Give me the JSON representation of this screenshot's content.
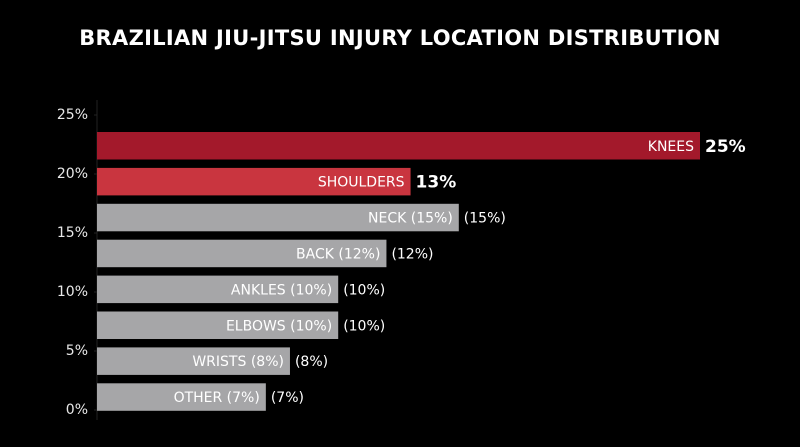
{
  "chart_data": {
    "type": "bar",
    "orientation": "horizontal",
    "title": "BRAZILIAN JIU-JITSU INJURY LOCATION DISTRIBUTION",
    "categories": [
      "KNEES",
      "SHOULDERS",
      "NECK (15%)",
      "BACK (12%)",
      "ANKLES (10%)",
      "ELBOWS (10%)",
      "WRISTS (8%)",
      "OTHER (7%)"
    ],
    "values": [
      25,
      13,
      15,
      12,
      10,
      10,
      8,
      7
    ],
    "value_labels": [
      "25%",
      "13%",
      "(15%)",
      "(12%)",
      "(10%)",
      "(10%)",
      "(8%)",
      "(7%)"
    ],
    "colors": [
      "#a3192b",
      "#c9353f",
      "#a6a6a8",
      "#a6a6a8",
      "#a6a6a8",
      "#a6a6a8",
      "#a6a6a8",
      "#a6a6a8"
    ],
    "xlim": [
      0,
      25
    ],
    "ylim": [
      0,
      25
    ],
    "yticks": [
      {
        "value": 0,
        "label": "0%"
      },
      {
        "value": 5,
        "label": "5%"
      },
      {
        "value": 10,
        "label": "10%"
      },
      {
        "value": 15,
        "label": "15%"
      },
      {
        "value": 20,
        "label": "20%"
      },
      {
        "value": 25,
        "label": "25%"
      }
    ]
  }
}
